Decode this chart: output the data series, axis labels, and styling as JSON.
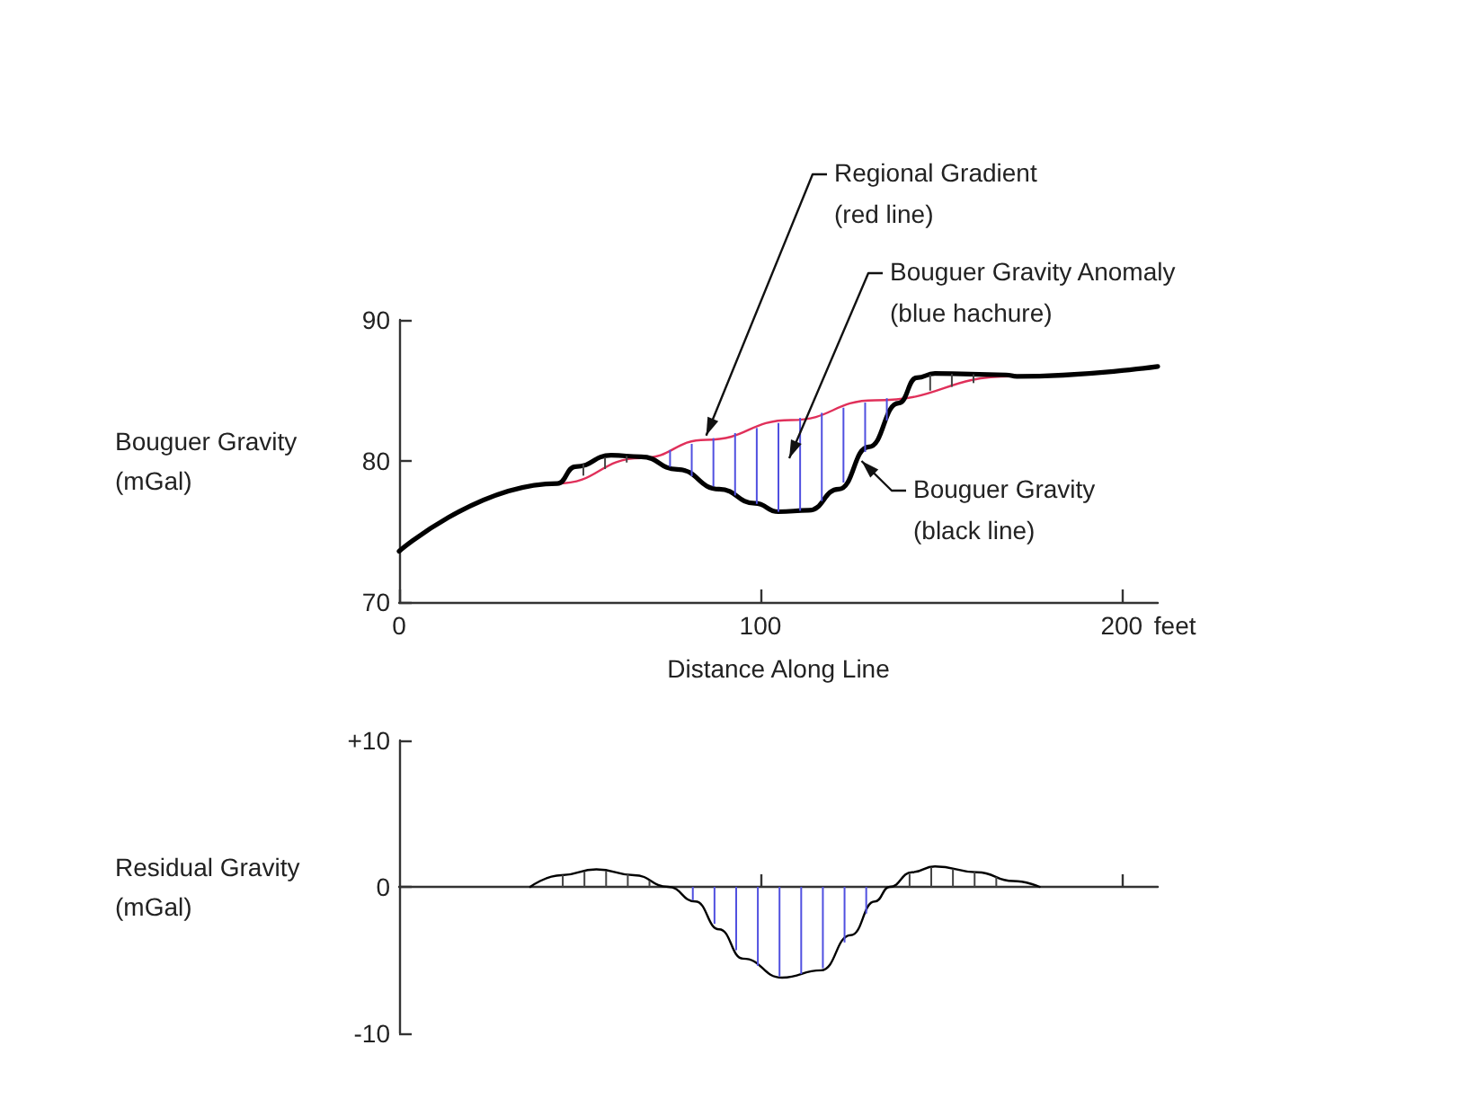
{
  "chart_data": [
    {
      "type": "line",
      "xlabel": "Distance Along Line",
      "ylabel": "Bouguer Gravity\n(mGal)",
      "xlim": [
        0,
        210
      ],
      "ylim": [
        70,
        90
      ],
      "xticks": [
        0,
        100,
        200
      ],
      "yticks": [
        70,
        80,
        90
      ],
      "marker": "none",
      "line_style": "solid",
      "series": [
        {
          "color": "#e0305a",
          "x": [
            0,
            43.8,
            67,
            85,
            108.5,
            131.7,
            169.7,
            210
          ],
          "values": [
            73.6,
            78.4,
            80.2,
            81.5,
            82.9,
            84.3,
            86.0,
            86.7
          ]
        },
        {
          "color": "#000000",
          "x": [
            0,
            43.8,
            48.8,
            58.7,
            67,
            77,
            88.6,
            98.5,
            105,
            113.4,
            121.7,
            130,
            138.3,
            143.3,
            148.3,
            168,
            171,
            210
          ],
          "values": [
            73.6,
            78.4,
            79.6,
            80.4,
            80.3,
            79.4,
            78.0,
            77.0,
            76.4,
            76.5,
            78.0,
            81.0,
            84.1,
            85.9,
            86.2,
            86.1,
            86.0,
            86.7
          ]
        }
      ],
      "annotations": [
        {
          "text": "Regional Gradient\n(red line)",
          "x": 85,
          "y": 81.8
        },
        "Bouguer Gravity Anomaly\n(blue hachure)",
        {
          "text": "Bouguer Gravity\n(black line)",
          "x": 128,
          "y": 80
        },
        "feet"
      ]
    },
    {
      "type": "line",
      "ylabel": "Residual Gravity\n(mGal)",
      "xlim": [
        0,
        210
      ],
      "ylim": [
        -10,
        10
      ],
      "xticks": [
        {
          "value": 100,
          "label": null
        },
        {
          "value": 200,
          "label": null
        }
      ],
      "yticks": [
        -10,
        0,
        {
          "value": 10,
          "label": "+10"
        }
      ],
      "tick_labels": "y",
      "marker": "none",
      "line_style": "solid",
      "series": [
        {
          "color": "#000000",
          "x": [
            36.3,
            45,
            54.6,
            65,
            74.5,
            82,
            88.6,
            95.2,
            106,
            116.8,
            125,
            131.7,
            135.8,
            142,
            148.3,
            160,
            170,
            177.3
          ],
          "values": [
            0,
            0.8,
            1.2,
            0.8,
            0,
            -1.0,
            -2.9,
            -4.9,
            -6.2,
            -5.7,
            -3.3,
            -1.0,
            0,
            1.0,
            1.4,
            1.0,
            0.4,
            0
          ]
        }
      ]
    }
  ]
}
